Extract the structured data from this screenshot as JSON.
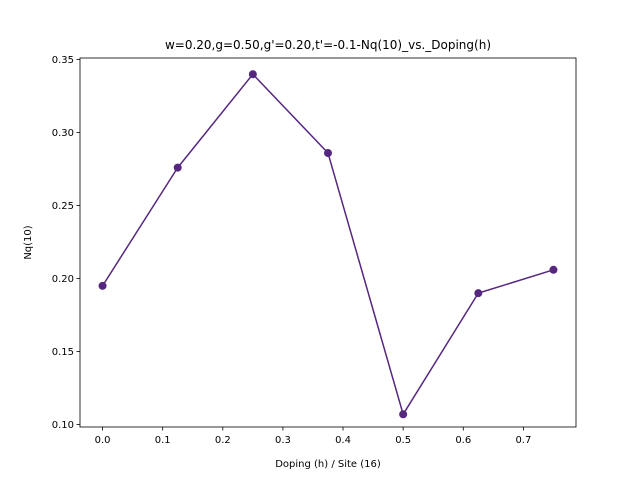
{
  "chart_data": {
    "type": "line",
    "title": "w=0.20,g=0.50,g'=0.20,t'=-0.1-Nq(10)_vs._Doping(h)",
    "xlabel": "Doping (h) / Site (16)",
    "ylabel": "Nq(10)",
    "xlim": [
      -0.0375,
      0.7875
    ],
    "ylim": [
      0.0983,
      0.3511
    ],
    "xticks": [
      0.0,
      0.1,
      0.2,
      0.3,
      0.4,
      0.5,
      0.6,
      0.7
    ],
    "xtick_labels": [
      "0.0",
      "0.1",
      "0.2",
      "0.3",
      "0.4",
      "0.5",
      "0.6",
      "0.7"
    ],
    "yticks": [
      0.1,
      0.15,
      0.2,
      0.25,
      0.3,
      0.35
    ],
    "ytick_labels": [
      "0.10",
      "0.15",
      "0.20",
      "0.25",
      "0.30",
      "0.35"
    ],
    "grid": false,
    "series": [
      {
        "color": "#56277e",
        "x": [
          0.0,
          0.125,
          0.25,
          0.375,
          0.5,
          0.625,
          0.75
        ],
        "y": [
          0.195,
          0.276,
          0.34,
          0.286,
          0.107,
          0.19,
          0.206
        ]
      }
    ]
  }
}
